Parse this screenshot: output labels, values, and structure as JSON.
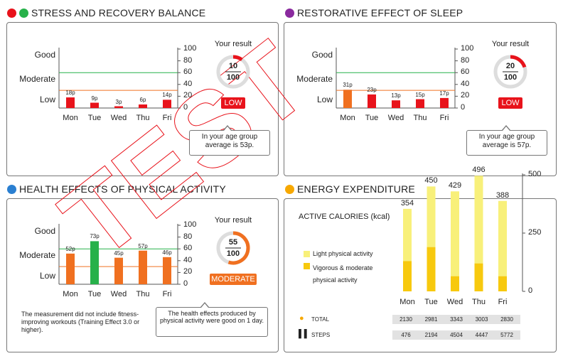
{
  "sections": {
    "stress": {
      "title": "STRESS AND RECOVERY BALANCE",
      "levels": [
        "Good",
        "Moderate",
        "Low"
      ],
      "axis": [
        "100",
        "80",
        "60",
        "40",
        "20",
        "0"
      ],
      "days": [
        "Mon",
        "Tue",
        "Wed",
        "Thu",
        "Fri"
      ],
      "bar_labels": [
        "18p",
        "9p",
        "3p",
        "6p",
        "14p"
      ],
      "bar_values": [
        18,
        9,
        3,
        6,
        14
      ],
      "bar_colors": [
        "#e8131b",
        "#e8131b",
        "#e8131b",
        "#e8131b",
        "#e8131b"
      ],
      "your_result": "Your result",
      "score": "10",
      "score_max": "100",
      "score_value": 10,
      "ring_color": "#e8131b",
      "badge": "LOW",
      "badge_color": "#e8131b",
      "note": "In your age group average is 53p."
    },
    "sleep": {
      "title": "RESTORATIVE EFFECT OF SLEEP",
      "levels": [
        "Good",
        "Moderate",
        "Low"
      ],
      "axis": [
        "100",
        "80",
        "60",
        "40",
        "20",
        "0"
      ],
      "days": [
        "Mon",
        "Tue",
        "Wed",
        "Thu",
        "Fri"
      ],
      "bar_labels": [
        "31p",
        "23p",
        "13p",
        "15p",
        "17p"
      ],
      "bar_values": [
        31,
        23,
        13,
        15,
        17
      ],
      "bar_colors": [
        "#f07020",
        "#e8131b",
        "#e8131b",
        "#e8131b",
        "#e8131b"
      ],
      "your_result": "Your result",
      "score": "20",
      "score_max": "100",
      "score_value": 20,
      "ring_color": "#e8131b",
      "badge": "LOW",
      "badge_color": "#e8131b",
      "note": "In your age group average is 57p."
    },
    "activity": {
      "title": "HEALTH EFFECTS OF PHYSICAL ACTIVITY",
      "levels": [
        "Good",
        "Moderate",
        "Low"
      ],
      "axis": [
        "100",
        "80",
        "60",
        "40",
        "20",
        "0"
      ],
      "days": [
        "Mon",
        "Tue",
        "Wed",
        "Thu",
        "Fri"
      ],
      "bar_labels": [
        "52p",
        "73p",
        "45p",
        "57p",
        "46p"
      ],
      "bar_values": [
        52,
        73,
        45,
        57,
        46
      ],
      "bar_colors": [
        "#f07020",
        "#27b14a",
        "#f07020",
        "#f07020",
        "#f07020"
      ],
      "your_result": "Your result",
      "score": "55",
      "score_max": "100",
      "score_value": 55,
      "ring_color": "#f07020",
      "badge": "MODERATE",
      "badge_color": "#f07020",
      "left_note": "The measurement did not include fitness-improving workouts (Training Effect 3.0 or higher).",
      "note": "The health effects produced by physical activity were good on 1 day."
    },
    "energy": {
      "title": "ENERGY EXPENDITURE",
      "subtitle": "ACTIVE CALORIES (kcal)",
      "legend_light": "Light physical activity",
      "legend_vigorous": "Vigorous & moderate physical activity",
      "light_color": "#f8f07a",
      "vigorous_color": "#f7c90e",
      "axis": [
        "500",
        "250",
        "0"
      ],
      "days": [
        "Mon",
        "Tue",
        "Wed",
        "Thu",
        "Fri"
      ],
      "totals_label": [
        "354",
        "450",
        "429",
        "496",
        "388"
      ],
      "totals": [
        354,
        450,
        429,
        496,
        388
      ],
      "vigorous": [
        130,
        190,
        65,
        120,
        65
      ],
      "total_label": "TOTAL",
      "total_row": [
        "2130",
        "2981",
        "3343",
        "3003",
        "2830"
      ],
      "steps_label": "STEPS",
      "steps_row": [
        "476",
        "2194",
        "4504",
        "4447",
        "5772"
      ]
    }
  },
  "watermark": "TEST"
}
